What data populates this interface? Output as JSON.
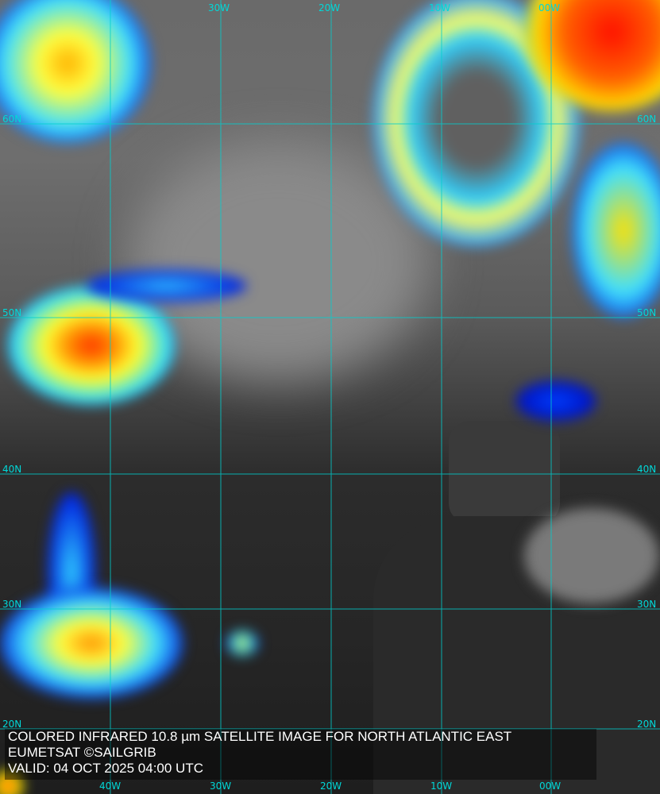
{
  "caption": {
    "line1": "COLORED INFRARED 10.8 µm SATELLITE IMAGE FOR NORTH ATLANTIC EAST",
    "line2": "EUMETSAT ©SAILGRIB",
    "line3": "VALID:  04 OCT 2025 04:00 UTC"
  },
  "grid": {
    "top_lon_labels": [
      "30W",
      "20W",
      "10W",
      "00W"
    ],
    "bottom_lon_labels": [
      "40W",
      "30W",
      "20W",
      "10W",
      "00W"
    ],
    "left_lat_labels": [
      "60N",
      "50N",
      "40N",
      "30N",
      "20N"
    ],
    "right_lat_labels": [
      "60N",
      "50N",
      "40N",
      "30N",
      "20N"
    ],
    "color": "#00d8d8"
  },
  "colors": {
    "cold_cloud_top": "#ff2000",
    "mid_cloud": "#ffff00",
    "low_cloud": "#00c8ff",
    "edge_cloud": "#0010d0",
    "clear": "#303030"
  }
}
